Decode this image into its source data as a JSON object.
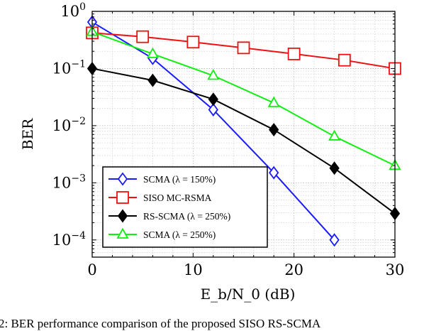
{
  "chart_data": {
    "type": "line",
    "title": "",
    "xlabel": "E_b/N_0 (dB)",
    "ylabel": "BER",
    "xlim": [
      0,
      30
    ],
    "ylim": [
      5e-05,
      1
    ],
    "yscale": "log",
    "grid": true,
    "legend_position": "bottom-left",
    "x_ticks": [
      {
        "value": 0,
        "label": "0"
      },
      {
        "value": 10,
        "label": "10"
      },
      {
        "value": 20,
        "label": "20"
      },
      {
        "value": 30,
        "label": "30"
      }
    ],
    "y_ticks": [
      {
        "value": 1,
        "base": "10",
        "exp": "0"
      },
      {
        "value": 0.1,
        "base": "10",
        "exp": "−1"
      },
      {
        "value": 0.01,
        "base": "10",
        "exp": "−2"
      },
      {
        "value": 0.001,
        "base": "10",
        "exp": "−3"
      },
      {
        "value": 0.0001,
        "base": "10",
        "exp": "−4"
      }
    ],
    "series": [
      {
        "name": "SCMA (λ = 150%)",
        "color": "#1a1aff",
        "marker": "diamond-open",
        "x": [
          0,
          6,
          12,
          18,
          24
        ],
        "y": [
          0.65,
          0.15,
          0.019,
          0.0015,
          0.0001
        ]
      },
      {
        "name": "SISO MC-RSMA",
        "color": "#ee1111",
        "marker": "square-open",
        "x": [
          0,
          5,
          10,
          15,
          20,
          25,
          30
        ],
        "y": [
          0.42,
          0.36,
          0.29,
          0.23,
          0.18,
          0.14,
          0.1
        ]
      },
      {
        "name": "RS-SCMA (λ = 250%)",
        "color": "#000000",
        "marker": "diamond-filled",
        "x": [
          0,
          6,
          12,
          18,
          24,
          30
        ],
        "y": [
          0.1,
          0.062,
          0.029,
          0.0085,
          0.0018,
          0.00029
        ]
      },
      {
        "name": "SCMA (λ = 250%)",
        "color": "#11ee11",
        "marker": "triangle-open",
        "x": [
          0,
          6,
          12,
          18,
          24,
          30
        ],
        "y": [
          0.44,
          0.18,
          0.075,
          0.025,
          0.0065,
          0.002
        ]
      }
    ]
  },
  "caption": "2: BER performance comparison of the proposed SISO RS-SCMA"
}
